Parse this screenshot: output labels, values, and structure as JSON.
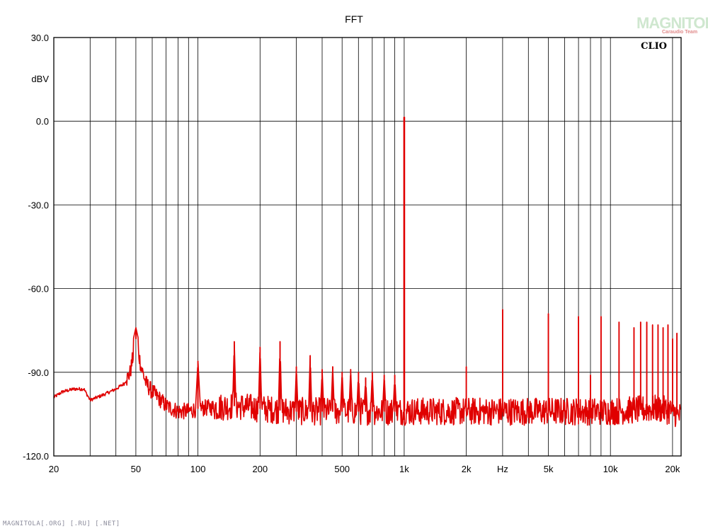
{
  "chart_data": {
    "type": "line",
    "title": "FFT",
    "brand": "CLIO",
    "ylabel": "dBV",
    "xlabel": "Hz",
    "x_scale": "log",
    "xlim": [
      20,
      22000
    ],
    "ylim": [
      -120,
      30
    ],
    "grid": true,
    "y_ticks": [
      "30.0",
      "0.0",
      "-30.0",
      "-60.0",
      "-90.0",
      "-120.0"
    ],
    "y_tick_values": [
      30,
      0,
      -30,
      -60,
      -90,
      -120
    ],
    "x_ticks": [
      "20",
      "50",
      "100",
      "200",
      "500",
      "1k",
      "2k",
      "Hz",
      "5k",
      "10k",
      "20k"
    ],
    "x_tick_values": [
      20,
      50,
      100,
      200,
      500,
      1000,
      2000,
      3000,
      5000,
      10000,
      20000
    ],
    "x_grid": [
      30,
      40,
      50,
      60,
      70,
      80,
      90,
      100,
      200,
      300,
      400,
      500,
      600,
      700,
      800,
      900,
      1000,
      2000,
      3000,
      4000,
      5000,
      6000,
      7000,
      8000,
      9000,
      10000,
      20000
    ],
    "series": [
      {
        "color": "#e00000",
        "noise_floor": [
          [
            20,
            -99
          ],
          [
            22,
            -97
          ],
          [
            25,
            -96
          ],
          [
            28,
            -96
          ],
          [
            30,
            -100
          ],
          [
            35,
            -98
          ],
          [
            40,
            -96
          ],
          [
            44,
            -94
          ],
          [
            47,
            -90
          ],
          [
            50,
            -78
          ],
          [
            53,
            -88
          ],
          [
            56,
            -94
          ],
          [
            60,
            -97
          ],
          [
            66,
            -100
          ],
          [
            70,
            -102
          ],
          [
            80,
            -104
          ],
          [
            90,
            -104
          ],
          [
            100,
            -103
          ],
          [
            150,
            -102
          ],
          [
            200,
            -103
          ],
          [
            300,
            -104
          ],
          [
            500,
            -104
          ],
          [
            1000,
            -104
          ],
          [
            2000,
            -104
          ],
          [
            5000,
            -104
          ],
          [
            10000,
            -104
          ],
          [
            17000,
            -103
          ],
          [
            20000,
            -104
          ],
          [
            22000,
            -106
          ]
        ],
        "peaks": [
          [
            50,
            -74
          ],
          [
            100,
            -86
          ],
          [
            150,
            -79
          ],
          [
            200,
            -81
          ],
          [
            250,
            -79
          ],
          [
            300,
            -88
          ],
          [
            350,
            -84
          ],
          [
            400,
            -89
          ],
          [
            450,
            -88
          ],
          [
            500,
            -90
          ],
          [
            550,
            -89
          ],
          [
            600,
            -90
          ],
          [
            650,
            -92
          ],
          [
            700,
            -90
          ],
          [
            800,
            -91
          ],
          [
            900,
            -91
          ],
          [
            1000,
            1.5
          ],
          [
            2000,
            -88
          ],
          [
            3000,
            -67.5
          ],
          [
            5000,
            -69
          ],
          [
            7000,
            -70
          ],
          [
            8000,
            -91
          ],
          [
            9000,
            -70
          ],
          [
            11000,
            -72
          ],
          [
            13000,
            -74
          ],
          [
            14000,
            -72
          ],
          [
            15000,
            -72
          ],
          [
            16000,
            -73
          ],
          [
            17000,
            -73
          ],
          [
            18000,
            -74
          ],
          [
            19000,
            -73
          ],
          [
            20000,
            -78
          ],
          [
            21000,
            -76
          ]
        ]
      }
    ]
  },
  "watermark": {
    "main": "MAGNITOLA",
    "sub": "Caraudio Team"
  },
  "footer": "MAGNITOLA[.ORG] [.RU] [.NET]"
}
